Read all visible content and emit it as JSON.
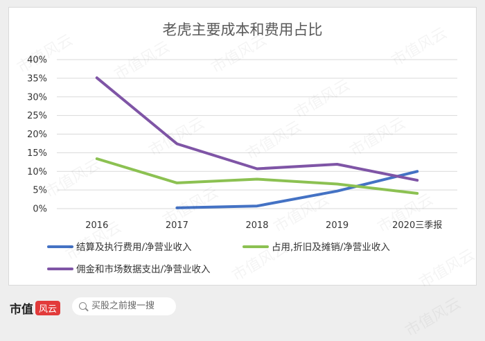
{
  "chart_data": {
    "type": "line",
    "title": "老虎主要成本和费用占比",
    "categories": [
      "2016",
      "2017",
      "2018",
      "2019",
      "2020三季报"
    ],
    "ylim": [
      0,
      40
    ],
    "yticks": [
      "0%",
      "5%",
      "10%",
      "15%",
      "20%",
      "25%",
      "30%",
      "35%",
      "40%"
    ],
    "grid": true,
    "legend_position": "bottom",
    "series": [
      {
        "name": "结算及执行费用/净营业收入",
        "color": "#4472C4",
        "values": [
          null,
          0.2,
          0.7,
          4.7,
          10.0
        ]
      },
      {
        "name": "占用,折旧及摊销/净营业收入",
        "color": "#8CC152",
        "values": [
          13.4,
          6.9,
          7.9,
          6.6,
          4.1
        ]
      },
      {
        "name": "佣金和市场数据支出/净营业收入",
        "color": "#7F55A6",
        "values": [
          35.1,
          17.4,
          10.7,
          11.9,
          7.6
        ]
      }
    ]
  },
  "watermark": "市值风云",
  "footer": {
    "brand": "市值",
    "brand_badge": "风云",
    "search_placeholder": "买股之前搜一搜",
    "search_icon": "search-icon"
  }
}
